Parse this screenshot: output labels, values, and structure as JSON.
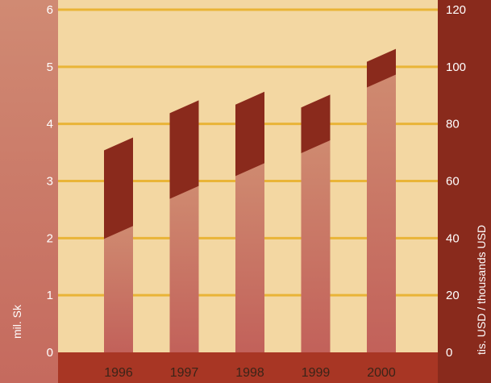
{
  "chart_data": {
    "type": "bar",
    "categories": [
      "1996",
      "1997",
      "1998",
      "1999",
      "2000"
    ],
    "series": [
      {
        "values": [
          2.1,
          2.8,
          3.2,
          3.6,
          4.75
        ]
      },
      {
        "values": [
          73,
          86,
          89,
          88,
          104
        ]
      }
    ],
    "y_left": {
      "label": "mil. Sk",
      "ylim": [
        0,
        6
      ],
      "ticks": [
        0,
        1,
        2,
        3,
        4,
        5,
        6
      ]
    },
    "y_right": {
      "label": "tis. USD / thousands USD",
      "ylim": [
        0,
        120
      ],
      "ticks": [
        0,
        20,
        40,
        60,
        80,
        100,
        120
      ]
    },
    "grid": true,
    "colors": {
      "plot_bg": "#f3d7a2",
      "grid": "#e9b437",
      "left_axis": "#cd7a68",
      "right_axis": "#892a1c",
      "bottom_band": "#a83624",
      "bar_low": "#c97863",
      "bar_high": "#8a2a1c",
      "tick_text": "#ffffff",
      "category_text": "#3a2418"
    }
  }
}
